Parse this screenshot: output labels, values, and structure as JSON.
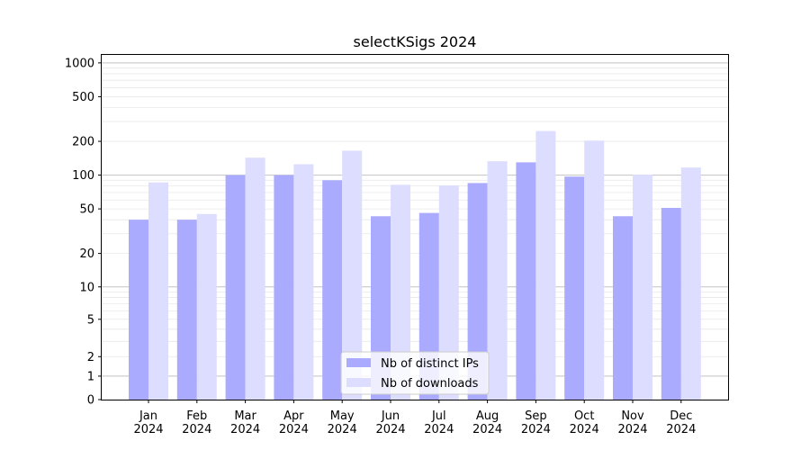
{
  "chart_data": {
    "type": "bar",
    "title": "selectKSigs 2024",
    "xlabel": "",
    "ylabel": "",
    "y_scale": "symlog",
    "ylim": [
      0,
      1200
    ],
    "y_ticks": [
      0,
      1,
      2,
      5,
      10,
      20,
      50,
      100,
      200,
      500,
      1000
    ],
    "y_tick_labels": [
      "0",
      "1",
      "2",
      "5",
      "10",
      "20",
      "50",
      "100",
      "200",
      "500",
      "1000"
    ],
    "grid": true,
    "legend_position": "bottom-center",
    "categories": [
      "Jan 2024",
      "Feb 2024",
      "Mar 2024",
      "Apr 2024",
      "May 2024",
      "Jun 2024",
      "Jul 2024",
      "Aug 2024",
      "Sep 2024",
      "Oct 2024",
      "Nov 2024",
      "Dec 2024"
    ],
    "category_lines": [
      [
        "Jan",
        "2024"
      ],
      [
        "Feb",
        "2024"
      ],
      [
        "Mar",
        "2024"
      ],
      [
        "Apr",
        "2024"
      ],
      [
        "May",
        "2024"
      ],
      [
        "Jun",
        "2024"
      ],
      [
        "Jul",
        "2024"
      ],
      [
        "Aug",
        "2024"
      ],
      [
        "Sep",
        "2024"
      ],
      [
        "Oct",
        "2024"
      ],
      [
        "Nov",
        "2024"
      ],
      [
        "Dec",
        "2024"
      ]
    ],
    "series": [
      {
        "name": "Nb of distinct IPs",
        "color": "#aaaaff",
        "values": [
          40,
          40,
          100,
          100,
          90,
          43,
          46,
          85,
          130,
          97,
          43,
          51
        ]
      },
      {
        "name": "Nb of downloads",
        "color": "#ddddff",
        "values": [
          86,
          45,
          143,
          125,
          165,
          82,
          81,
          133,
          247,
          203,
          101,
          117
        ]
      }
    ]
  }
}
